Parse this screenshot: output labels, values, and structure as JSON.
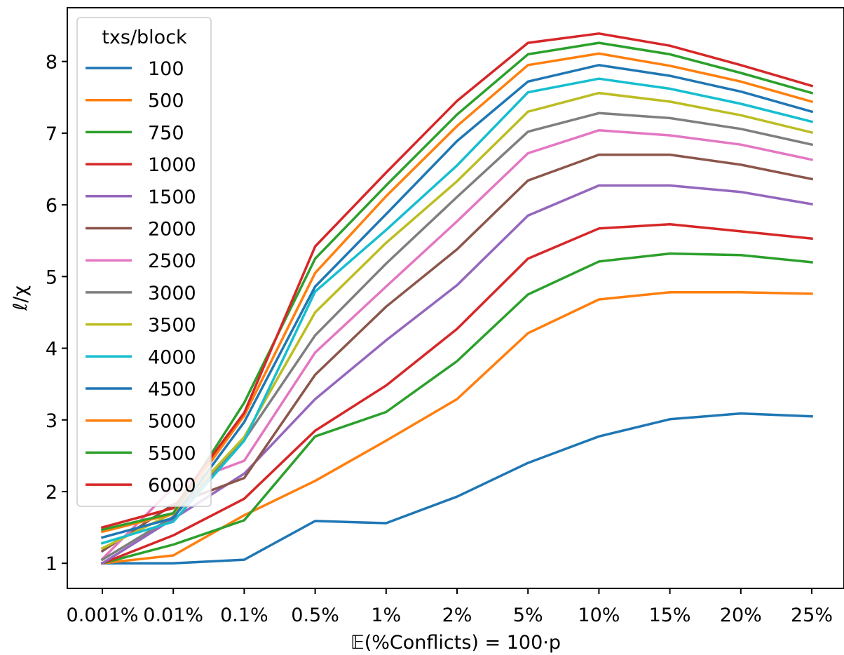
{
  "chart_data": {
    "type": "line",
    "title": "",
    "xlabel": "𝔼(%Conflicts) = 100·p",
    "ylabel": "ℓ/χ",
    "categories": [
      "0.001%",
      "0.01%",
      "0.1%",
      "0.5%",
      "1%",
      "2%",
      "5%",
      "10%",
      "15%",
      "20%",
      "25%"
    ],
    "ylim": [
      0.65,
      8.75
    ],
    "yticks": [
      "1",
      "2",
      "3",
      "4",
      "5",
      "6",
      "7",
      "8"
    ],
    "grid": false,
    "legend": {
      "title": "txs/block",
      "placement": "upper left"
    },
    "series": [
      {
        "name": "100",
        "color": "#1f77b4",
        "values": [
          1.0,
          1.0,
          1.05,
          1.59,
          1.56,
          1.93,
          2.4,
          2.77,
          3.01,
          3.09,
          3.05
        ]
      },
      {
        "name": "500",
        "color": "#ff7f0e",
        "values": [
          1.0,
          1.11,
          1.67,
          2.15,
          2.71,
          3.29,
          4.21,
          4.68,
          4.78,
          4.78,
          4.76
        ]
      },
      {
        "name": "750",
        "color": "#2ca02c",
        "values": [
          1.0,
          1.26,
          1.6,
          2.77,
          3.11,
          3.82,
          4.75,
          5.21,
          5.32,
          5.3,
          5.2
        ]
      },
      {
        "name": "1000",
        "color": "#d62728",
        "values": [
          1.0,
          1.39,
          1.9,
          2.85,
          3.48,
          4.27,
          5.25,
          5.67,
          5.73,
          5.63,
          5.53
        ]
      },
      {
        "name": "1500",
        "color": "#9467bd",
        "values": [
          1.0,
          1.62,
          2.25,
          3.29,
          4.11,
          4.88,
          5.85,
          6.27,
          6.27,
          6.18,
          6.01
        ]
      },
      {
        "name": "2000",
        "color": "#8c564b",
        "values": [
          1.17,
          1.82,
          2.19,
          3.63,
          4.58,
          5.38,
          6.34,
          6.7,
          6.7,
          6.56,
          6.36
        ]
      },
      {
        "name": "2500",
        "color": "#e377c2",
        "values": [
          1.06,
          2.06,
          2.43,
          3.94,
          4.86,
          5.77,
          6.72,
          7.04,
          6.97,
          6.84,
          6.63
        ]
      },
      {
        "name": "3000",
        "color": "#7f7f7f",
        "values": [
          1.05,
          1.65,
          2.72,
          4.18,
          5.18,
          6.11,
          7.02,
          7.28,
          7.21,
          7.06,
          6.84
        ]
      },
      {
        "name": "3500",
        "color": "#bcbd22",
        "values": [
          1.21,
          1.7,
          2.76,
          4.5,
          5.47,
          6.33,
          7.3,
          7.56,
          7.44,
          7.25,
          7.01
        ]
      },
      {
        "name": "4000",
        "color": "#17becf",
        "values": [
          1.28,
          1.58,
          2.71,
          4.79,
          5.65,
          6.55,
          7.57,
          7.76,
          7.62,
          7.41,
          7.16
        ]
      },
      {
        "name": "4500",
        "color": "#1f77b4",
        "values": [
          1.36,
          1.63,
          2.97,
          4.86,
          5.87,
          6.89,
          7.72,
          7.95,
          7.8,
          7.58,
          7.3
        ]
      },
      {
        "name": "5000",
        "color": "#ff7f0e",
        "values": [
          1.44,
          1.69,
          3.06,
          5.05,
          6.12,
          7.1,
          7.95,
          8.11,
          7.94,
          7.72,
          7.44
        ]
      },
      {
        "name": "5500",
        "color": "#2ca02c",
        "values": [
          1.47,
          1.7,
          3.24,
          5.25,
          6.27,
          7.26,
          8.1,
          8.26,
          8.1,
          7.84,
          7.56
        ]
      },
      {
        "name": "6000",
        "color": "#d62728",
        "values": [
          1.5,
          1.77,
          3.1,
          5.42,
          6.45,
          7.45,
          8.26,
          8.39,
          8.22,
          7.95,
          7.66
        ]
      }
    ]
  }
}
